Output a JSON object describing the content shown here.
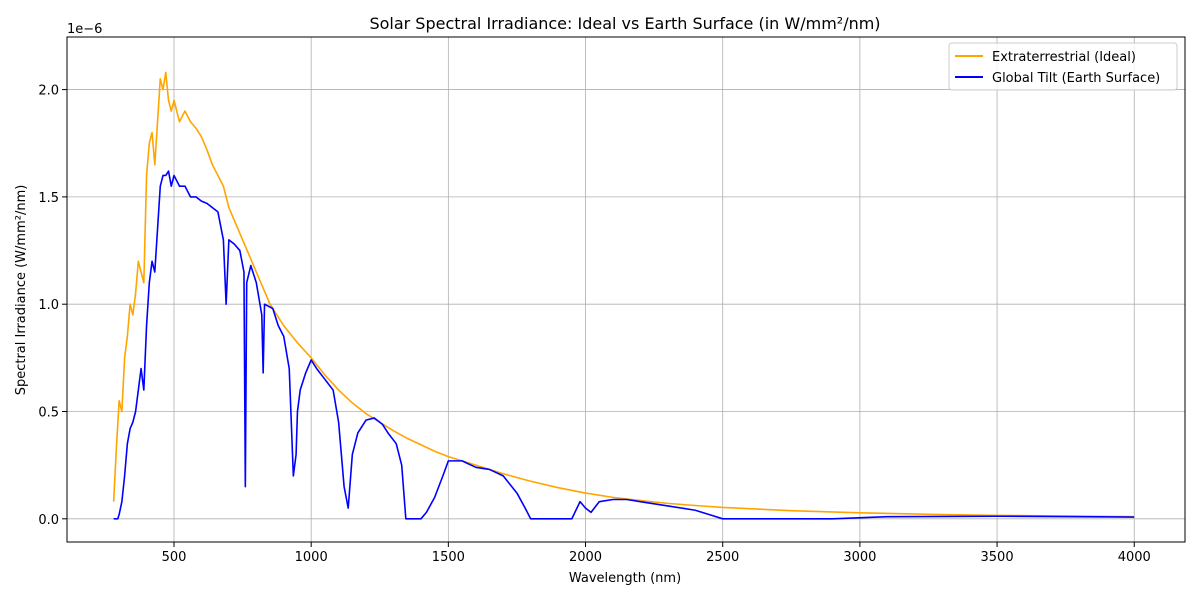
{
  "chart_data": {
    "type": "line",
    "title": "Solar Spectral Irradiance: Ideal vs Earth Surface (in W/mm²/nm)",
    "xlabel": "Wavelength (nm)",
    "ylabel": "Spectral Irradiance (W/mm²/nm)",
    "y_offset_label": "1e−6",
    "y_scale_factor": 1e-06,
    "xlim": [
      110,
      4185
    ],
    "ylim": [
      -0.108,
      2.245
    ],
    "x_ticks": [
      500,
      1000,
      1500,
      2000,
      2500,
      3000,
      3500,
      4000
    ],
    "x_tick_labels": [
      "500",
      "1000",
      "1500",
      "2000",
      "2500",
      "3000",
      "3500",
      "4000"
    ],
    "y_ticks": [
      0.0,
      0.5,
      1.0,
      1.5,
      2.0
    ],
    "y_tick_labels": [
      "0.0",
      "0.5",
      "1.0",
      "1.5",
      "2.0"
    ],
    "grid": true,
    "legend_position": "top-right",
    "series": [
      {
        "name": "Extraterrestrial (Ideal)",
        "color": "#ffa500",
        "points": [
          [
            280,
            0.08
          ],
          [
            290,
            0.33
          ],
          [
            300,
            0.55
          ],
          [
            310,
            0.5
          ],
          [
            320,
            0.75
          ],
          [
            330,
            0.85
          ],
          [
            340,
            1.0
          ],
          [
            350,
            0.95
          ],
          [
            360,
            1.05
          ],
          [
            370,
            1.2
          ],
          [
            380,
            1.15
          ],
          [
            390,
            1.1
          ],
          [
            400,
            1.6
          ],
          [
            410,
            1.75
          ],
          [
            420,
            1.8
          ],
          [
            430,
            1.65
          ],
          [
            440,
            1.85
          ],
          [
            450,
            2.05
          ],
          [
            460,
            2.0
          ],
          [
            470,
            2.08
          ],
          [
            480,
            1.95
          ],
          [
            490,
            1.9
          ],
          [
            500,
            1.95
          ],
          [
            520,
            1.85
          ],
          [
            540,
            1.9
          ],
          [
            560,
            1.85
          ],
          [
            580,
            1.82
          ],
          [
            600,
            1.78
          ],
          [
            620,
            1.72
          ],
          [
            640,
            1.65
          ],
          [
            660,
            1.6
          ],
          [
            680,
            1.55
          ],
          [
            700,
            1.45
          ],
          [
            750,
            1.3
          ],
          [
            800,
            1.15
          ],
          [
            850,
            1.0
          ],
          [
            900,
            0.9
          ],
          [
            950,
            0.82
          ],
          [
            1000,
            0.75
          ],
          [
            1050,
            0.67
          ],
          [
            1100,
            0.6
          ],
          [
            1150,
            0.54
          ],
          [
            1200,
            0.49
          ],
          [
            1250,
            0.45
          ],
          [
            1300,
            0.41
          ],
          [
            1350,
            0.375
          ],
          [
            1400,
            0.345
          ],
          [
            1450,
            0.315
          ],
          [
            1500,
            0.29
          ],
          [
            1600,
            0.25
          ],
          [
            1700,
            0.21
          ],
          [
            1800,
            0.175
          ],
          [
            1900,
            0.145
          ],
          [
            2000,
            0.12
          ],
          [
            2100,
            0.1
          ],
          [
            2200,
            0.085
          ],
          [
            2300,
            0.072
          ],
          [
            2400,
            0.062
          ],
          [
            2500,
            0.053
          ],
          [
            2750,
            0.038
          ],
          [
            3000,
            0.028
          ],
          [
            3250,
            0.021
          ],
          [
            3500,
            0.016
          ],
          [
            3750,
            0.013
          ],
          [
            4000,
            0.01
          ]
        ]
      },
      {
        "name": "Global Tilt (Earth Surface)",
        "color": "#0000ff",
        "points": [
          [
            280,
            0.0
          ],
          [
            295,
            0.0
          ],
          [
            300,
            0.02
          ],
          [
            310,
            0.08
          ],
          [
            320,
            0.2
          ],
          [
            330,
            0.35
          ],
          [
            340,
            0.42
          ],
          [
            350,
            0.45
          ],
          [
            360,
            0.5
          ],
          [
            370,
            0.6
          ],
          [
            380,
            0.7
          ],
          [
            390,
            0.6
          ],
          [
            400,
            0.9
          ],
          [
            410,
            1.1
          ],
          [
            420,
            1.2
          ],
          [
            430,
            1.15
          ],
          [
            440,
            1.35
          ],
          [
            450,
            1.55
          ],
          [
            460,
            1.6
          ],
          [
            470,
            1.6
          ],
          [
            480,
            1.62
          ],
          [
            490,
            1.55
          ],
          [
            500,
            1.6
          ],
          [
            520,
            1.55
          ],
          [
            540,
            1.55
          ],
          [
            560,
            1.5
          ],
          [
            580,
            1.5
          ],
          [
            600,
            1.48
          ],
          [
            620,
            1.47
          ],
          [
            640,
            1.45
          ],
          [
            660,
            1.43
          ],
          [
            680,
            1.3
          ],
          [
            690,
            1.0
          ],
          [
            700,
            1.3
          ],
          [
            720,
            1.28
          ],
          [
            740,
            1.25
          ],
          [
            755,
            1.15
          ],
          [
            760,
            0.15
          ],
          [
            765,
            1.1
          ],
          [
            780,
            1.18
          ],
          [
            800,
            1.1
          ],
          [
            820,
            0.95
          ],
          [
            825,
            0.68
          ],
          [
            830,
            1.0
          ],
          [
            860,
            0.98
          ],
          [
            880,
            0.9
          ],
          [
            900,
            0.85
          ],
          [
            920,
            0.7
          ],
          [
            935,
            0.2
          ],
          [
            945,
            0.3
          ],
          [
            950,
            0.5
          ],
          [
            960,
            0.6
          ],
          [
            980,
            0.68
          ],
          [
            1000,
            0.74
          ],
          [
            1020,
            0.7
          ],
          [
            1050,
            0.65
          ],
          [
            1080,
            0.6
          ],
          [
            1100,
            0.45
          ],
          [
            1120,
            0.15
          ],
          [
            1135,
            0.05
          ],
          [
            1150,
            0.3
          ],
          [
            1170,
            0.4
          ],
          [
            1200,
            0.46
          ],
          [
            1230,
            0.47
          ],
          [
            1260,
            0.44
          ],
          [
            1280,
            0.4
          ],
          [
            1310,
            0.35
          ],
          [
            1330,
            0.25
          ],
          [
            1345,
            0.0
          ],
          [
            1400,
            0.0
          ],
          [
            1420,
            0.03
          ],
          [
            1450,
            0.1
          ],
          [
            1480,
            0.2
          ],
          [
            1500,
            0.27
          ],
          [
            1550,
            0.27
          ],
          [
            1600,
            0.24
          ],
          [
            1650,
            0.23
          ],
          [
            1700,
            0.2
          ],
          [
            1750,
            0.12
          ],
          [
            1780,
            0.05
          ],
          [
            1800,
            0.0
          ],
          [
            1950,
            0.0
          ],
          [
            1980,
            0.08
          ],
          [
            2000,
            0.05
          ],
          [
            2020,
            0.03
          ],
          [
            2050,
            0.08
          ],
          [
            2100,
            0.09
          ],
          [
            2150,
            0.09
          ],
          [
            2200,
            0.08
          ],
          [
            2300,
            0.06
          ],
          [
            2400,
            0.04
          ],
          [
            2450,
            0.02
          ],
          [
            2500,
            0.0
          ],
          [
            2900,
            0.0
          ],
          [
            3100,
            0.01
          ],
          [
            3500,
            0.012
          ],
          [
            3800,
            0.01
          ],
          [
            4000,
            0.008
          ]
        ]
      }
    ]
  }
}
